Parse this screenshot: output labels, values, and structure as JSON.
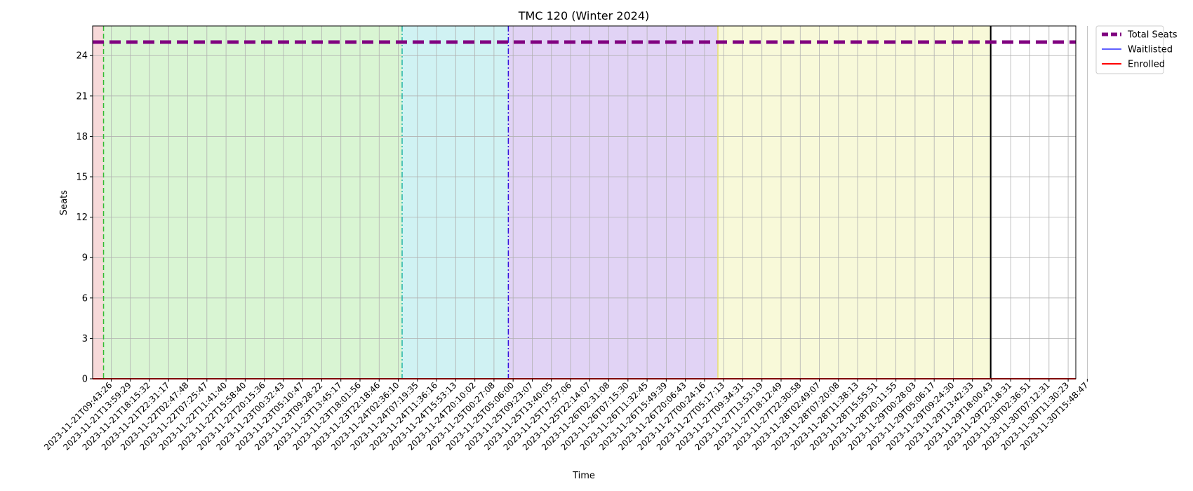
{
  "chart_data": {
    "type": "line",
    "title": "TMC 120 (Winter 2024)",
    "xlabel": "Time",
    "ylabel": "Seats",
    "ylim": [
      0,
      26.2
    ],
    "yticks": [
      0,
      3,
      6,
      9,
      12,
      15,
      18,
      21,
      24
    ],
    "grid": true,
    "legend_position": "outside top-right",
    "x_tick_labels": [
      "2023-11-21T09:43:26",
      "2023-11-21T13:59:29",
      "2023-11-21T18:15:32",
      "2023-11-21T22:31:17",
      "2023-11-22T02:47:48",
      "2023-11-22T07:25:47",
      "2023-11-22T11:41:40",
      "2023-11-22T15:58:40",
      "2023-11-22T20:15:36",
      "2023-11-23T00:32:43",
      "2023-11-23T05:10:47",
      "2023-11-23T09:28:22",
      "2023-11-23T13:45:17",
      "2023-11-23T18:01:56",
      "2023-11-23T22:18:46",
      "2023-11-24T02:36:10",
      "2023-11-24T07:19:35",
      "2023-11-24T11:36:16",
      "2023-11-24T15:53:13",
      "2023-11-24T20:10:02",
      "2023-11-25T00:27:08",
      "2023-11-25T05:06:00",
      "2023-11-25T09:23:07",
      "2023-11-25T13:40:05",
      "2023-11-25T17:57:06",
      "2023-11-25T22:14:07",
      "2023-11-26T02:31:08",
      "2023-11-26T07:15:30",
      "2023-11-26T11:32:45",
      "2023-11-26T15:49:39",
      "2023-11-26T20:06:43",
      "2023-11-27T00:24:16",
      "2023-11-27T05:17:13",
      "2023-11-27T09:34:31",
      "2023-11-27T13:53:19",
      "2023-11-27T18:12:49",
      "2023-11-27T22:30:58",
      "2023-11-28T02:49:07",
      "2023-11-28T07:20:08",
      "2023-11-28T11:38:13",
      "2023-11-28T15:55:51",
      "2023-11-28T20:11:55",
      "2023-11-29T00:28:03",
      "2023-11-29T05:06:17",
      "2023-11-29T09:24:30",
      "2023-11-29T13:42:33",
      "2023-11-29T18:00:43",
      "2023-11-29T22:18:31",
      "2023-11-30T02:36:51",
      "2023-11-30T07:12:31",
      "2023-11-30T11:30:23",
      "2023-11-30T15:48:47"
    ],
    "x_range_ticks": [
      -0.97,
      50.4
    ],
    "series": [
      {
        "name": "Total Seats",
        "color": "#800080",
        "style": "dashed",
        "width": 5,
        "x": [
          -0.97,
          50.4
        ],
        "y": [
          25,
          25
        ]
      },
      {
        "name": "Waitlisted",
        "color": "#0000ff",
        "style": "solid",
        "width": 1.2,
        "x": [
          -0.97,
          50.4
        ],
        "y": [
          0,
          0
        ]
      },
      {
        "name": "Enrolled",
        "color": "#ff0000",
        "style": "solid",
        "width": 2,
        "x": [
          -0.97,
          50.4
        ],
        "y": [
          0,
          0
        ]
      }
    ],
    "phases": [
      {
        "from": -0.97,
        "to": -0.4,
        "color": "#f7d9d9"
      },
      {
        "from": -0.4,
        "to": 15.2,
        "color": "#d9f5d3"
      },
      {
        "from": 15.2,
        "to": 20.75,
        "color": "#d0f2f3"
      },
      {
        "from": 20.75,
        "to": 31.7,
        "color": "#e1d3f5"
      },
      {
        "from": 31.7,
        "to": 45.95,
        "color": "#f8f9d9"
      }
    ],
    "markers": [
      {
        "x": -0.4,
        "color": "#33bb33",
        "style": "dashed"
      },
      {
        "x": 15.2,
        "color": "#22b5a8",
        "style": "dashdot"
      },
      {
        "x": 20.75,
        "color": "#3311dd",
        "style": "dashdot"
      },
      {
        "x": 31.7,
        "color": "#e8e070",
        "style": "solid"
      },
      {
        "x": 45.95,
        "color": "#000000",
        "style": "solid"
      }
    ]
  }
}
